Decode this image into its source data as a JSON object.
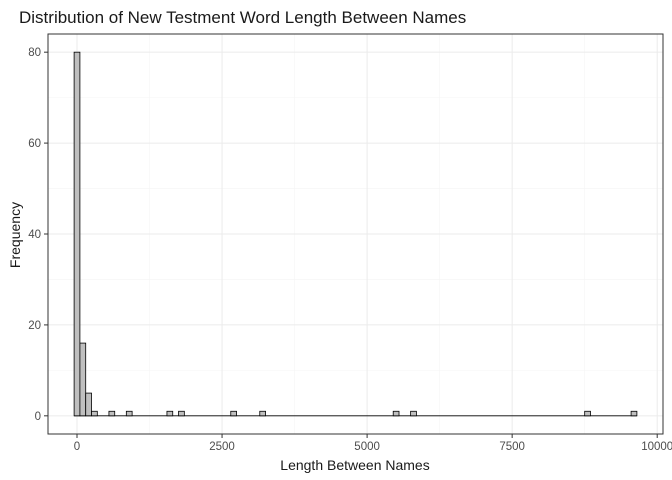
{
  "chart_data": {
    "type": "bar",
    "title": "Distribution of New Testment Word Length Between Names",
    "xlabel": "Length Between Names",
    "ylabel": "Frequency",
    "xlim": [
      -500,
      10100
    ],
    "ylim": [
      -4,
      84
    ],
    "binwidth": 100,
    "x_ticks": [
      0,
      2500,
      5000,
      7500,
      10000
    ],
    "x_tick_labels": [
      "0",
      "2500",
      "5000",
      "7500",
      "10000"
    ],
    "y_ticks": [
      0,
      20,
      40,
      60,
      80
    ],
    "y_tick_labels": [
      "0",
      "20",
      "40",
      "60",
      "80"
    ],
    "grid": true,
    "legend": "none",
    "bins": [
      {
        "x": 0,
        "count": 80
      },
      {
        "x": 100,
        "count": 16
      },
      {
        "x": 200,
        "count": 5
      },
      {
        "x": 300,
        "count": 1
      },
      {
        "x": 600,
        "count": 1
      },
      {
        "x": 900,
        "count": 1
      },
      {
        "x": 1600,
        "count": 1
      },
      {
        "x": 1800,
        "count": 1
      },
      {
        "x": 2700,
        "count": 1
      },
      {
        "x": 3200,
        "count": 1
      },
      {
        "x": 5500,
        "count": 1
      },
      {
        "x": 5800,
        "count": 1
      },
      {
        "x": 8800,
        "count": 1
      },
      {
        "x": 9600,
        "count": 1
      }
    ],
    "colors": {
      "bar_fill": "#bfbfbf",
      "bar_stroke": "#000000",
      "panel_border": "#333333",
      "grid_major": "#ebebeb",
      "grid_minor": "#f5f5f5"
    }
  }
}
